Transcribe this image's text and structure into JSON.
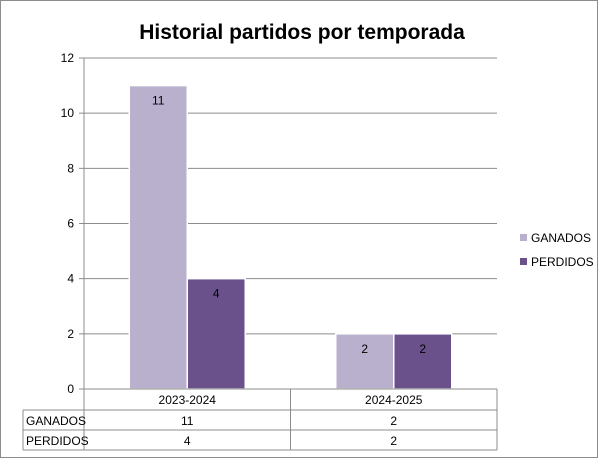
{
  "chart_data": {
    "type": "bar",
    "title": "Historial partidos por temporada",
    "categories": [
      "2023-2024",
      "2024-2025"
    ],
    "series": [
      {
        "name": "GANADOS",
        "values": [
          11,
          2
        ],
        "color": "#b8b0cd"
      },
      {
        "name": "PERDIDOS",
        "values": [
          4,
          2
        ],
        "color": "#6a518c"
      }
    ],
    "ylim": [
      0,
      12
    ],
    "yticks": [
      0,
      2,
      4,
      6,
      8,
      10,
      12
    ],
    "grid": true,
    "legend_position": "right",
    "data_table": true
  }
}
